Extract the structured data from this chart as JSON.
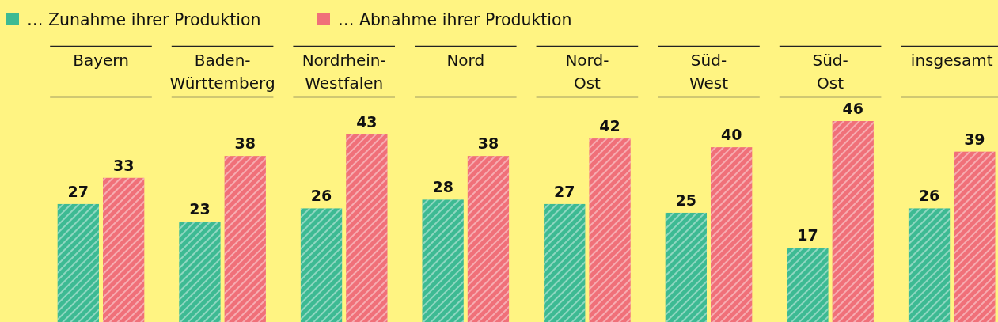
{
  "chart_data": {
    "type": "bar",
    "categories": [
      "Bayern",
      "Baden-Württemberg",
      "Nordrhein-Westfalen",
      "Nord",
      "Nord-Ost",
      "Süd-West",
      "Süd-Ost",
      "insgesamt"
    ],
    "series": [
      {
        "name": "… Zunahme ihrer Produktion",
        "color": "#3dba93",
        "values": [
          27,
          23,
          26,
          28,
          27,
          25,
          17,
          26
        ]
      },
      {
        "name": "… Abnahme ihrer Produktion",
        "color": "#f07079",
        "values": [
          33,
          38,
          43,
          38,
          42,
          40,
          46,
          39
        ]
      }
    ],
    "data_labels": true,
    "legend": "top left",
    "tick_labels": "x"
  }
}
